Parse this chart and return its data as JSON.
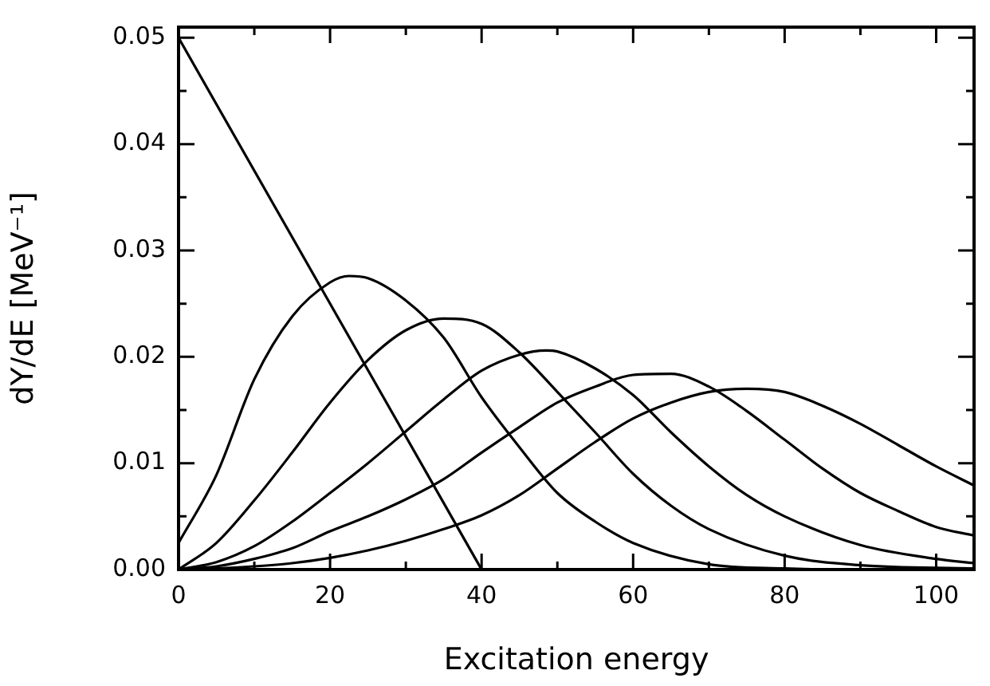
{
  "chart_data": {
    "type": "line",
    "xlabel": "Excitation energy",
    "ylabel": "dY/dE [MeV⁻¹]",
    "xlim": [
      0,
      105
    ],
    "xticks": [
      0,
      {
        "value": 10,
        "label": null
      },
      20,
      {
        "value": 30,
        "label": null
      },
      40,
      {
        "value": 50,
        "label": null
      },
      60,
      {
        "value": 70,
        "label": null
      },
      80,
      {
        "value": 90,
        "label": null
      },
      100
    ],
    "ylim": [
      0,
      0.051
    ],
    "yticks": [
      {
        "value": 0,
        "label": "0.00"
      },
      {
        "value": 0.005,
        "label": null
      },
      {
        "value": 0.01,
        "label": "0.01"
      },
      {
        "value": 0.015,
        "label": null
      },
      {
        "value": 0.02,
        "label": "0.02"
      },
      {
        "value": 0.025,
        "label": null
      },
      {
        "value": 0.03,
        "label": "0.03"
      },
      {
        "value": 0.035,
        "label": null
      },
      {
        "value": 0.04,
        "label": "0.04"
      },
      {
        "value": 0.045,
        "label": null
      },
      {
        "value": 0.05,
        "label": "0.05"
      }
    ],
    "grid": false,
    "legend": false,
    "marker": "none",
    "line_style": "solid",
    "series": [
      {
        "color": "#000000",
        "x": [
          0,
          40
        ],
        "values": [
          0.05,
          0
        ]
      },
      {
        "color": "#000000",
        "x": [
          0,
          5,
          10,
          15,
          20,
          22.5,
          25,
          30,
          35,
          40,
          45,
          50,
          55,
          60,
          70,
          80,
          90,
          105
        ],
        "values": [
          0.0025,
          0.0089,
          0.0179,
          0.0238,
          0.027,
          0.0276,
          0.0274,
          0.0253,
          0.0218,
          0.0162,
          0.0115,
          0.0072,
          0.0045,
          0.0025,
          0.0005,
          0.0001,
          0,
          0
        ]
      },
      {
        "color": "#000000",
        "x": [
          0,
          5,
          10,
          15,
          20,
          25,
          30,
          35,
          40,
          45,
          50,
          55,
          60,
          65,
          70,
          80,
          90,
          105
        ],
        "values": [
          0,
          0.0025,
          0.0065,
          0.011,
          0.0157,
          0.0197,
          0.0225,
          0.0236,
          0.0231,
          0.0204,
          0.0167,
          0.0129,
          0.009,
          0.006,
          0.0038,
          0.0013,
          0.0004,
          0.0001
        ]
      },
      {
        "color": "#000000",
        "x": [
          0,
          5,
          10,
          15,
          20,
          25,
          30,
          35,
          40,
          45,
          48.5,
          50,
          55,
          60,
          65,
          70,
          75,
          80,
          90,
          100,
          105
        ],
        "values": [
          0,
          0.0007,
          0.0022,
          0.0045,
          0.0072,
          0.01,
          0.013,
          0.016,
          0.0187,
          0.0202,
          0.0206,
          0.0205,
          0.0189,
          0.0164,
          0.0129,
          0.0097,
          0.007,
          0.005,
          0.0023,
          0.001,
          0.0006
        ]
      },
      {
        "color": "#000000",
        "x": [
          0,
          5,
          10,
          15,
          20,
          25,
          30,
          35,
          40,
          45,
          50,
          55,
          60,
          65,
          70,
          75,
          80,
          85,
          90,
          95,
          100,
          105
        ],
        "values": [
          0,
          0.0003,
          0.001,
          0.002,
          0.0036,
          0.005,
          0.0066,
          0.0085,
          0.011,
          0.0134,
          0.0157,
          0.0172,
          0.0183,
          0.0184,
          0.0172,
          0.0149,
          0.0122,
          0.0095,
          0.0072,
          0.0055,
          0.004,
          0.0032
        ]
      },
      {
        "color": "#000000",
        "x": [
          0,
          5,
          10,
          15,
          20,
          25,
          30,
          35,
          40,
          45,
          50,
          55,
          60,
          65,
          70,
          75,
          80,
          85,
          90,
          95,
          100,
          105
        ],
        "values": [
          0,
          0.0001,
          0.0003,
          0.0006,
          0.0011,
          0.0018,
          0.0027,
          0.0038,
          0.0051,
          0.007,
          0.0095,
          0.012,
          0.0142,
          0.0157,
          0.0167,
          0.017,
          0.0167,
          0.0154,
          0.0137,
          0.0117,
          0.0097,
          0.0079
        ]
      }
    ]
  }
}
